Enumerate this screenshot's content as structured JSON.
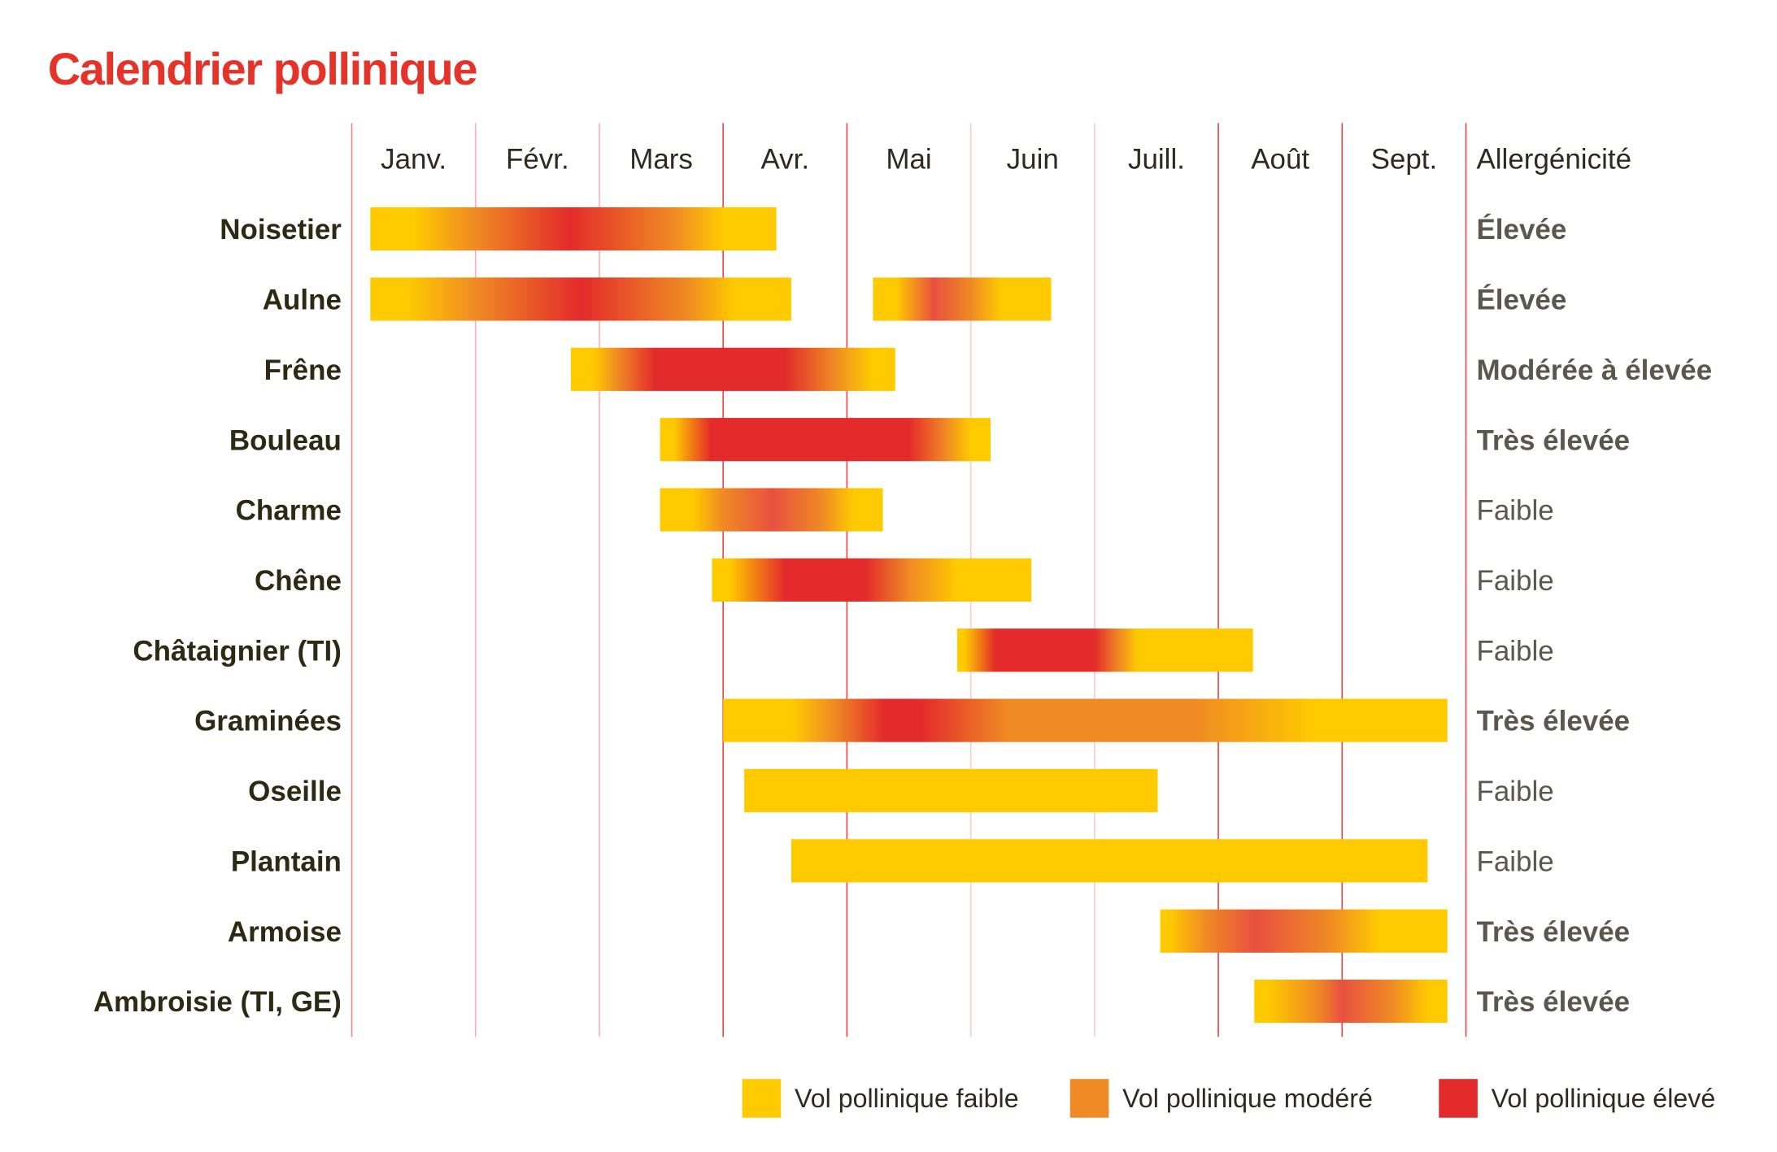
{
  "chart_data": {
    "type": "gantt",
    "title": "Calendrier pollinique",
    "x_unit": "months from start of January",
    "months": [
      "Janv.",
      "Févr.",
      "Mars",
      "Avr.",
      "Mai",
      "Juin",
      "Juill.",
      "Août",
      "Sept."
    ],
    "allergenicity_header": "Allergénicité",
    "month_line_colors": [
      "#EE8A8A",
      "#F4B4B4",
      "#F4B4B4",
      "#E64A4A",
      "#E64A4A",
      "#F6D0D0",
      "#F6D0D0",
      "#E64A4A",
      "#E64A4A",
      "#E64A4A"
    ],
    "colors": {
      "faible": "#FFCB00",
      "modere": "#F08A24",
      "eleve": "#E32B2B",
      "eleve_light": "#E8503F"
    },
    "legend": [
      {
        "label": "Vol pollinique faible",
        "color": "#FFCB00"
      },
      {
        "label": "Vol pollinique modéré",
        "color": "#F08A24"
      },
      {
        "label": "Vol pollinique élevé",
        "color": "#E32B2B"
      }
    ],
    "rows": [
      {
        "name": "Noisetier",
        "allergenicity": "Élevée",
        "strong": true,
        "periods": [
          {
            "start": 0.15,
            "end": 3.43,
            "stops": [
              [
                0.15,
                "#FFCB00"
              ],
              [
                0.5,
                "#FFCB00"
              ],
              [
                1.0,
                "#F08A24"
              ],
              [
                1.76,
                "#E32B2B"
              ],
              [
                2.6,
                "#F08A24"
              ],
              [
                3.0,
                "#FFCB00"
              ],
              [
                3.43,
                "#FFCB00"
              ]
            ]
          }
        ]
      },
      {
        "name": "Aulne",
        "allergenicity": "Élevée",
        "strong": true,
        "periods": [
          {
            "start": 0.15,
            "end": 3.55,
            "stops": [
              [
                0.15,
                "#FFCB00"
              ],
              [
                0.45,
                "#FFCB00"
              ],
              [
                1.0,
                "#F08A24"
              ],
              [
                1.85,
                "#E32B2B"
              ],
              [
                2.7,
                "#F08A24"
              ],
              [
                3.1,
                "#FFCB00"
              ],
              [
                3.55,
                "#FFCB00"
              ]
            ]
          },
          {
            "start": 4.21,
            "end": 5.65,
            "stops": [
              [
                4.21,
                "#FFCB00"
              ],
              [
                4.4,
                "#FFCB00"
              ],
              [
                4.7,
                "#E8503F"
              ],
              [
                5.0,
                "#F08A24"
              ],
              [
                5.25,
                "#FFCB00"
              ],
              [
                5.65,
                "#FFCB00"
              ]
            ]
          }
        ]
      },
      {
        "name": "Frêne",
        "allergenicity": "Modérée à élevée",
        "strong": true,
        "periods": [
          {
            "start": 1.77,
            "end": 4.39,
            "stops": [
              [
                1.77,
                "#FFCB00"
              ],
              [
                1.95,
                "#FFCB00"
              ],
              [
                2.15,
                "#F08A24"
              ],
              [
                2.45,
                "#E32B2B"
              ],
              [
                3.5,
                "#E32B2B"
              ],
              [
                3.9,
                "#F08A24"
              ],
              [
                4.2,
                "#FFCB00"
              ],
              [
                4.39,
                "#FFCB00"
              ]
            ]
          }
        ]
      },
      {
        "name": "Bouleau",
        "allergenicity": "Très élevée",
        "strong": true,
        "periods": [
          {
            "start": 2.49,
            "end": 5.16,
            "stops": [
              [
                2.49,
                "#FFCB00"
              ],
              [
                2.6,
                "#FFCB00"
              ],
              [
                2.9,
                "#E32B2B"
              ],
              [
                4.5,
                "#E32B2B"
              ],
              [
                4.8,
                "#F08A24"
              ],
              [
                5.0,
                "#FFCB00"
              ],
              [
                5.16,
                "#FFCB00"
              ]
            ]
          }
        ]
      },
      {
        "name": "Charme",
        "allergenicity": "Faible",
        "strong": false,
        "periods": [
          {
            "start": 2.49,
            "end": 4.29,
            "stops": [
              [
                2.49,
                "#FFCB00"
              ],
              [
                2.75,
                "#FFCB00"
              ],
              [
                3.0,
                "#F08A24"
              ],
              [
                3.4,
                "#E8503F"
              ],
              [
                3.8,
                "#F08A24"
              ],
              [
                4.05,
                "#FFCB00"
              ],
              [
                4.29,
                "#FFCB00"
              ]
            ]
          }
        ]
      },
      {
        "name": "Chêne",
        "allergenicity": "Faible",
        "strong": false,
        "periods": [
          {
            "start": 2.91,
            "end": 5.49,
            "stops": [
              [
                2.91,
                "#FFCB00"
              ],
              [
                3.05,
                "#FFCB00"
              ],
              [
                3.5,
                "#E32B2B"
              ],
              [
                4.15,
                "#E32B2B"
              ],
              [
                4.5,
                "#F08A24"
              ],
              [
                4.9,
                "#FFCB00"
              ],
              [
                5.49,
                "#FFCB00"
              ]
            ]
          }
        ]
      },
      {
        "name": "Châtaignier (TI)",
        "allergenicity": "Faible",
        "strong": false,
        "periods": [
          {
            "start": 4.89,
            "end": 7.28,
            "stops": [
              [
                4.89,
                "#FFCB00"
              ],
              [
                4.95,
                "#FFCB00"
              ],
              [
                5.2,
                "#E32B2B"
              ],
              [
                6.0,
                "#E32B2B"
              ],
              [
                6.2,
                "#F08A24"
              ],
              [
                6.35,
                "#FFCB00"
              ],
              [
                7.28,
                "#FFCB00"
              ]
            ]
          }
        ]
      },
      {
        "name": "Graminées",
        "allergenicity": "Très élevée",
        "strong": true,
        "periods": [
          {
            "start": 3.0,
            "end": 8.85,
            "stops": [
              [
                3.0,
                "#FFCB00"
              ],
              [
                3.55,
                "#FFCB00"
              ],
              [
                3.9,
                "#F08A24"
              ],
              [
                4.3,
                "#E32B2B"
              ],
              [
                4.6,
                "#E32B2B"
              ],
              [
                5.3,
                "#F08A24"
              ],
              [
                6.8,
                "#F08A24"
              ],
              [
                7.8,
                "#FFCB00"
              ],
              [
                8.85,
                "#FFCB00"
              ]
            ]
          }
        ]
      },
      {
        "name": "Oseille",
        "allergenicity": "Faible",
        "strong": false,
        "periods": [
          {
            "start": 3.17,
            "end": 6.51,
            "stops": [
              [
                3.17,
                "#FFCB00"
              ],
              [
                6.51,
                "#FFCB00"
              ]
            ]
          }
        ]
      },
      {
        "name": "Plantain",
        "allergenicity": "Faible",
        "strong": false,
        "periods": [
          {
            "start": 3.55,
            "end": 8.69,
            "stops": [
              [
                3.55,
                "#FFCB00"
              ],
              [
                8.69,
                "#FFCB00"
              ]
            ]
          }
        ]
      },
      {
        "name": "Armoise",
        "allergenicity": "Très élevée",
        "strong": true,
        "periods": [
          {
            "start": 6.53,
            "end": 8.85,
            "stops": [
              [
                6.53,
                "#FFCB00"
              ],
              [
                6.6,
                "#FFCB00"
              ],
              [
                6.9,
                "#F08A24"
              ],
              [
                7.3,
                "#E8503F"
              ],
              [
                7.9,
                "#F08A24"
              ],
              [
                8.3,
                "#FFCB00"
              ],
              [
                8.85,
                "#FFCB00"
              ]
            ]
          }
        ]
      },
      {
        "name": "Ambroisie (TI, GE)",
        "allergenicity": "Très élevée",
        "strong": true,
        "periods": [
          {
            "start": 7.29,
            "end": 8.85,
            "stops": [
              [
                7.29,
                "#FFCB00"
              ],
              [
                7.4,
                "#FFCB00"
              ],
              [
                7.8,
                "#F08A24"
              ],
              [
                8.0,
                "#E8503F"
              ],
              [
                8.4,
                "#F08A24"
              ],
              [
                8.7,
                "#FFCB00"
              ],
              [
                8.85,
                "#FFCB00"
              ]
            ]
          }
        ]
      }
    ]
  }
}
